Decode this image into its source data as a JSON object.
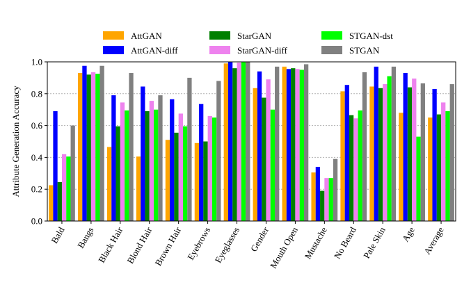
{
  "chart_data": {
    "type": "bar",
    "title": "",
    "xlabel": "",
    "ylabel": "Attribute Generation Accuracy",
    "ylim": [
      0,
      1.0
    ],
    "yticks": [
      0.0,
      0.2,
      0.4,
      0.6,
      0.8,
      1.0
    ],
    "ytick_labels": [
      "0.0",
      "0.2",
      "0.4",
      "0.6",
      "0.8",
      "1.0"
    ],
    "grid": "horizontal dotted",
    "legend_position": "top-center",
    "categories": [
      "Bald",
      "Bangs",
      "Black Hair",
      "Blond Hair",
      "Brown Hair",
      "Eyebrows",
      "Eyeglasses",
      "Gender",
      "Mouth Open",
      "Mustache",
      "No Beard",
      "Pale Skin",
      "Age",
      "Average"
    ],
    "series": [
      {
        "name": "AttGAN",
        "color": "#ffa500",
        "values": [
          0.225,
          0.93,
          0.465,
          0.405,
          0.51,
          0.49,
          0.99,
          0.835,
          0.97,
          0.305,
          0.815,
          0.845,
          0.68,
          0.65
        ]
      },
      {
        "name": "AttGAN-diff",
        "color": "#0000ff",
        "values": [
          0.69,
          0.975,
          0.79,
          0.845,
          0.765,
          0.735,
          1.0,
          0.94,
          0.955,
          0.34,
          0.855,
          0.97,
          0.93,
          0.83
        ]
      },
      {
        "name": "StarGAN",
        "color": "#008000",
        "values": [
          0.245,
          0.92,
          0.595,
          0.69,
          0.555,
          0.5,
          0.96,
          0.775,
          0.96,
          0.19,
          0.665,
          0.835,
          0.84,
          0.67
        ]
      },
      {
        "name": "StarGAN-diff",
        "color": "#ee82ee",
        "values": [
          0.42,
          0.935,
          0.745,
          0.755,
          0.675,
          0.66,
          0.995,
          0.89,
          0.955,
          0.27,
          0.645,
          0.86,
          0.895,
          0.745
        ]
      },
      {
        "name": "STGAN-dst",
        "color": "#00ff00",
        "values": [
          0.405,
          0.925,
          0.695,
          0.7,
          0.595,
          0.65,
          1.0,
          0.7,
          0.95,
          0.27,
          0.695,
          0.91,
          0.53,
          0.69
        ]
      },
      {
        "name": "STGAN",
        "color": "#808080",
        "values": [
          0.6,
          0.975,
          0.93,
          0.79,
          0.9,
          0.88,
          1.0,
          0.97,
          0.985,
          0.39,
          0.935,
          0.97,
          0.865,
          0.86
        ]
      }
    ]
  }
}
